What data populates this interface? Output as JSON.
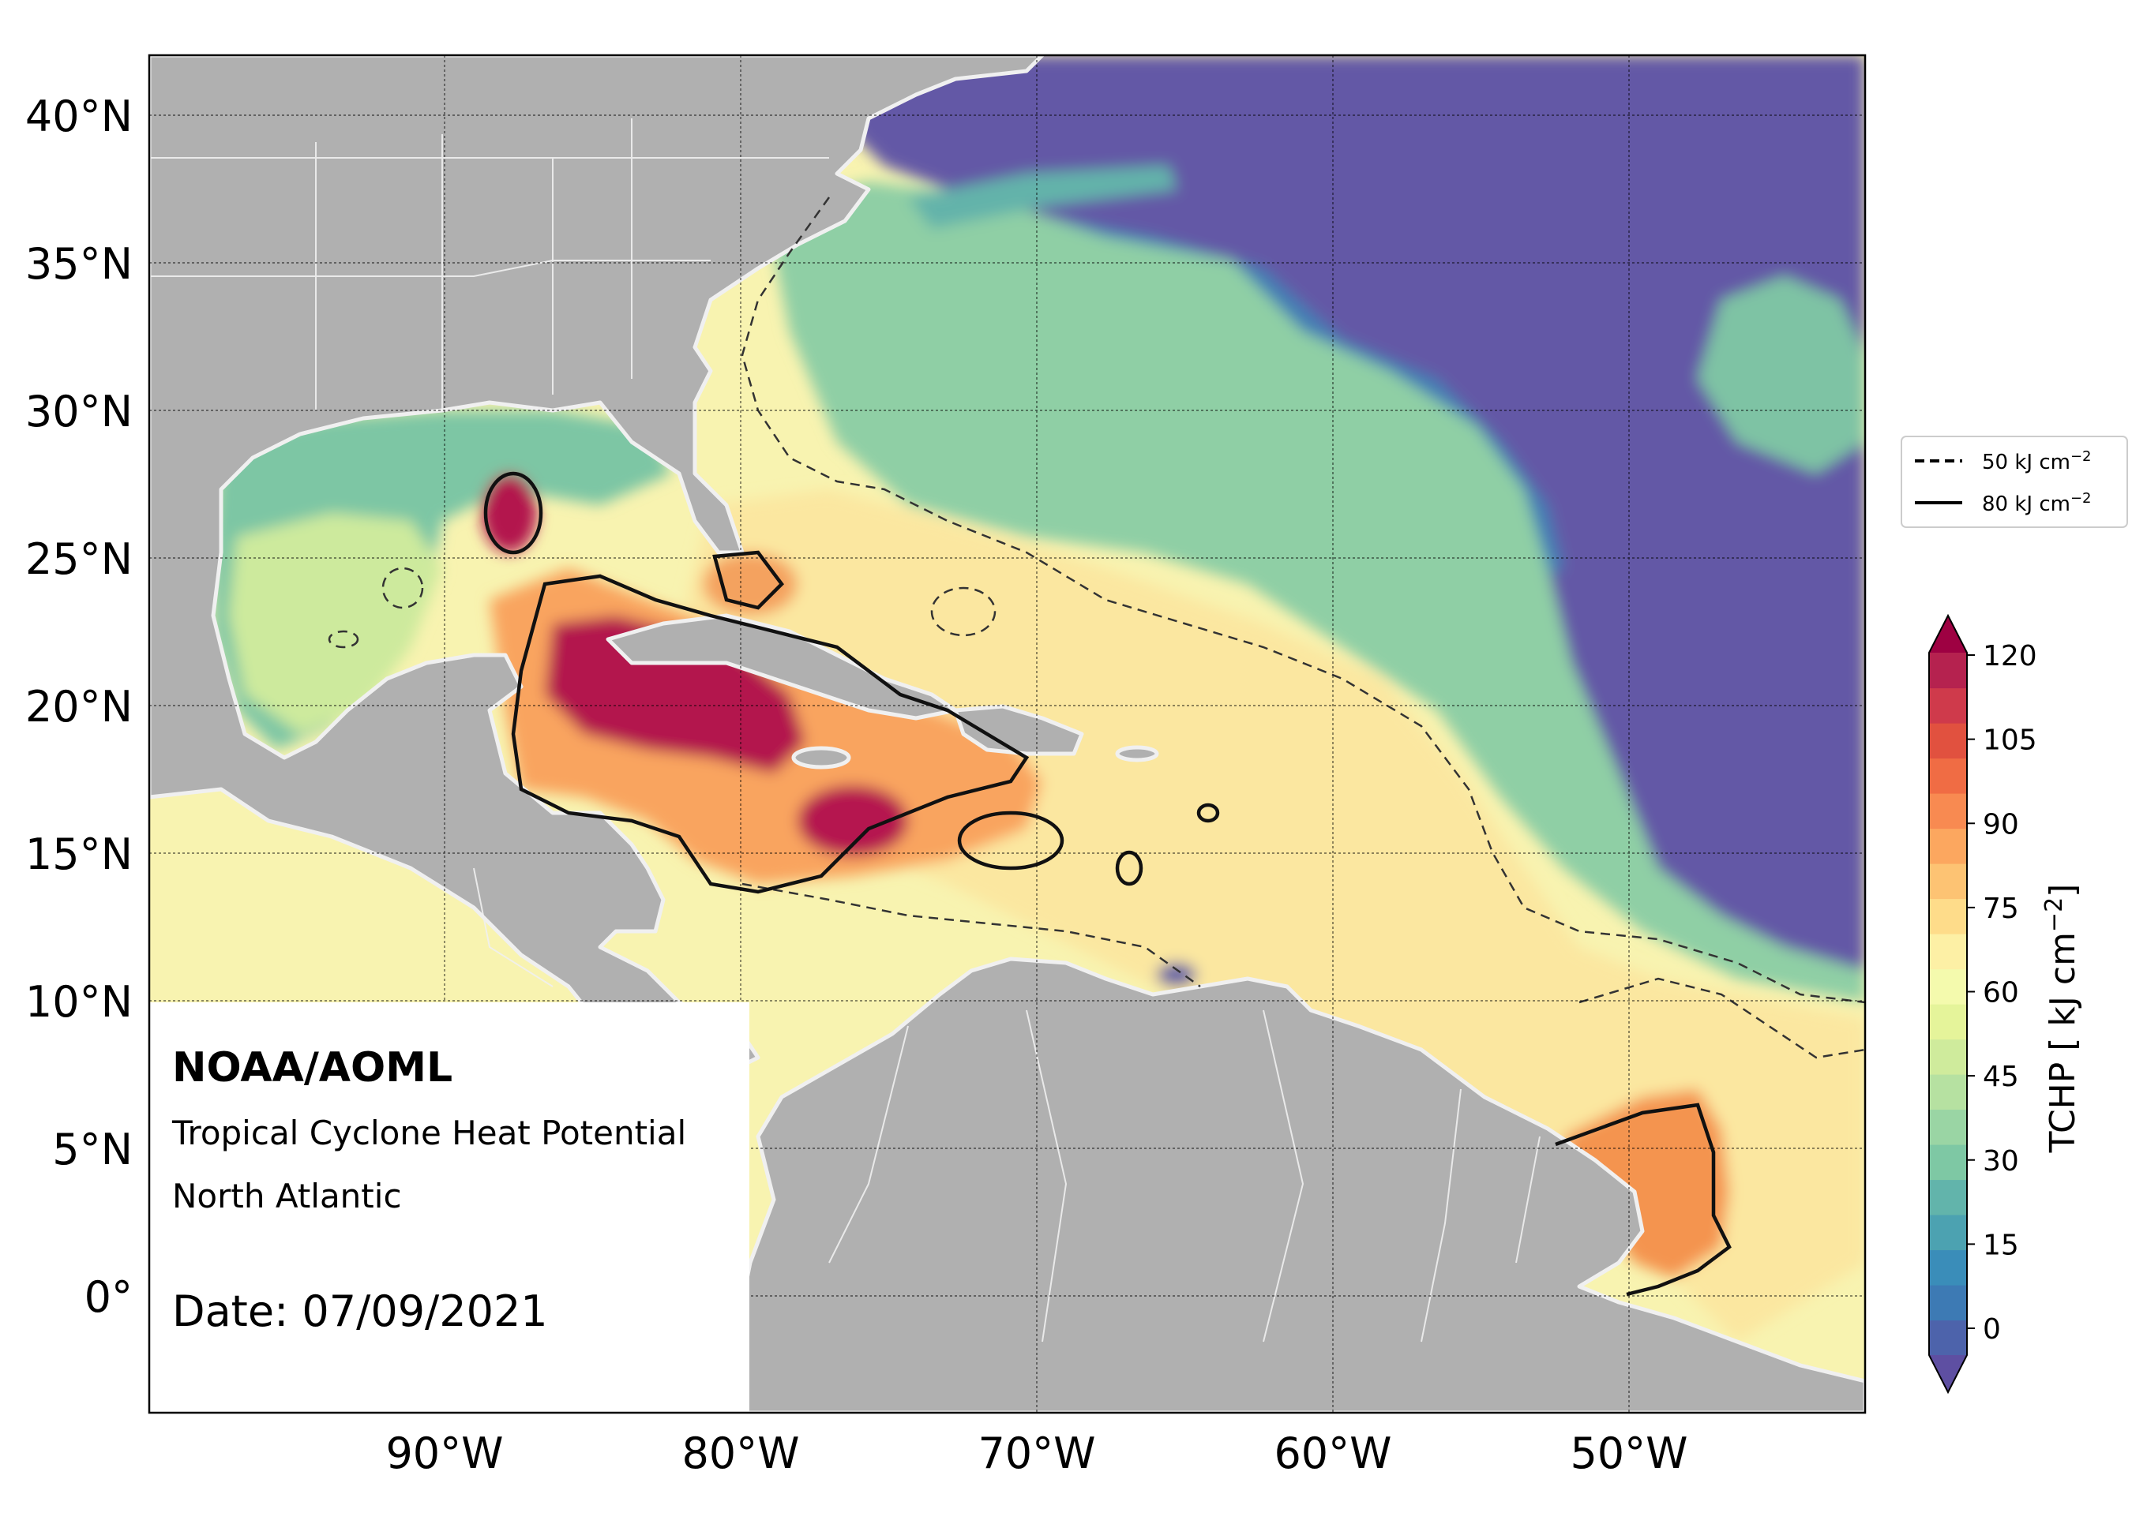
{
  "map": {
    "organization": "NOAA/AOML",
    "product": "Tropical Cyclone Heat Potential",
    "region": "North Atlantic",
    "date_text": "Date: 07/09/2021",
    "lat_labels": [
      "40°N",
      "35°N",
      "30°N",
      "25°N",
      "20°N",
      "15°N",
      "10°N",
      "5°N",
      "0°"
    ],
    "lon_labels": [
      "90°W",
      "80°W",
      "70°W",
      "60°W",
      "50°W"
    ],
    "extent": {
      "lon_min": -100,
      "lon_max": -42,
      "lat_min": -4,
      "lat_max": 42
    }
  },
  "legend": {
    "items": [
      {
        "label": "50 kJ cm",
        "sup": "−2",
        "style": "dashed"
      },
      {
        "label": "80 kJ cm",
        "sup": "−2",
        "style": "solid"
      }
    ]
  },
  "colorbar": {
    "title": "TCHP [ kJ cm",
    "title_sup": "−2",
    "title_end": "]",
    "ticks": [
      "120",
      "105",
      "90",
      "75",
      "60",
      "45",
      "30",
      "15",
      "0"
    ],
    "levels": [
      "#5e4fa2",
      "#4d63ab",
      "#3d7ab4",
      "#3a8db9",
      "#4ca2b1",
      "#62b4ab",
      "#7ec8a4",
      "#9ad5a4",
      "#b6e1a1",
      "#cfeb9c",
      "#e5f49a",
      "#f4faad",
      "#fdf0a5",
      "#fedc8a",
      "#fdc373",
      "#fca75f",
      "#f88a51",
      "#f06c44",
      "#e1513f",
      "#cf3a4b",
      "#b5224f",
      "#9e0142"
    ]
  },
  "colors": {
    "land": "#b0b0b0",
    "coast": "#f0f0f0",
    "ocean_cold": "#6459a6",
    "ocean_cool": "#72c0a7",
    "ocean_warm": "#fbe9a0",
    "ocean_hot": "#f7a05c",
    "ocean_max": "#b4194d"
  }
}
